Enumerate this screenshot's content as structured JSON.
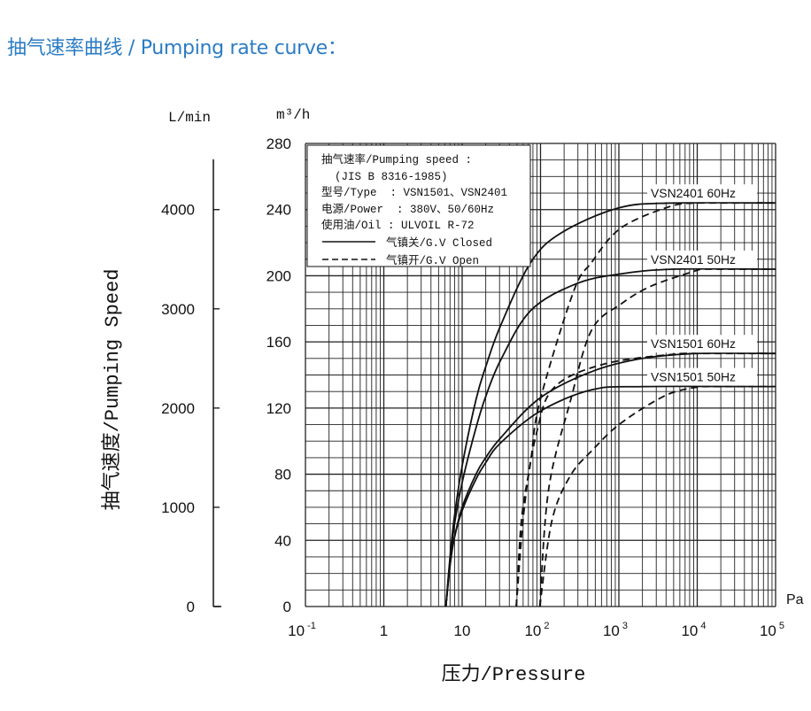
{
  "page": {
    "title": "抽气速率曲线 / Pumping rate curve："
  },
  "chart_data": {
    "type": "line",
    "title": "",
    "xlabel": "压力/Pressure",
    "xunit": "Pa",
    "xscale": "log",
    "xlim": [
      0.1,
      100000
    ],
    "x_ticks": [
      {
        "base": "10",
        "exp": "-1"
      },
      {
        "base": "1",
        "exp": ""
      },
      {
        "base": "10",
        "exp": ""
      },
      {
        "base": "10",
        "exp": "2"
      },
      {
        "base": "10",
        "exp": "3"
      },
      {
        "base": "10",
        "exp": "4"
      },
      {
        "base": "10",
        "exp": "5"
      }
    ],
    "ylabel": "抽气速度/Pumping Speed",
    "yunit": "m³/h",
    "ylim": [
      0,
      280
    ],
    "y_ticks": [
      "0",
      "40",
      "80",
      "120",
      "160",
      "200",
      "240",
      "280"
    ],
    "y2unit": "L/min",
    "y2_ticks": [
      "0",
      "1000",
      "2000",
      "3000",
      "4000"
    ],
    "y2_values": [
      0,
      1000,
      2000,
      3000,
      4000
    ],
    "grid": true,
    "legend": {
      "placement": "top-left",
      "lines": [
        "抽气速率/Pumping speed :",
        "  (JIS B 8316-1985)",
        "型号/Type  : VSN1501、VSN2401",
        "电源/Power  : 380V、50/60Hz",
        "使用油/Oil : ULVOIL R-72"
      ],
      "entries": [
        {
          "label": "气镇关/G.V Closed",
          "style": "solid"
        },
        {
          "label": "气镇开/G.V Open",
          "style": "dashed"
        }
      ]
    },
    "annotations": [
      {
        "text": "VSN2401 60Hz",
        "level": 244
      },
      {
        "text": "VSN2401 50Hz",
        "level": 204
      },
      {
        "text": "VSN1501 60Hz",
        "level": 153
      },
      {
        "text": "VSN1501 50Hz",
        "level": 133
      }
    ],
    "series": [
      {
        "name": "VSN2401 60Hz G.V Closed",
        "style": "solid",
        "x": [
          6.2,
          7,
          8,
          10,
          15,
          20,
          31,
          75,
          185,
          1000,
          5000,
          100000
        ],
        "y": [
          0,
          30,
          55,
          85,
          125,
          145,
          170,
          208,
          226,
          241,
          244,
          244
        ]
      },
      {
        "name": "VSN2401 50Hz G.V Closed",
        "style": "solid",
        "x": [
          6.2,
          7,
          8,
          10,
          15,
          20,
          31,
          75,
          280,
          1000,
          5000,
          100000
        ],
        "y": [
          0,
          28,
          50,
          75,
          108,
          127,
          149,
          179,
          195,
          201,
          204,
          204
        ]
      },
      {
        "name": "VSN1501 60Hz G.V Closed",
        "style": "solid",
        "x": [
          6.2,
          7,
          8,
          10,
          15,
          20,
          31,
          98,
          447,
          2000,
          10000,
          100000
        ],
        "y": [
          0,
          25,
          42,
          60,
          80,
          90,
          102,
          126,
          142,
          150,
          153,
          153
        ]
      },
      {
        "name": "VSN1501 50Hz G.V Closed",
        "style": "solid",
        "x": [
          6.2,
          7,
          8,
          10,
          15,
          20,
          31,
          98,
          447,
          2000,
          100000
        ],
        "y": [
          0,
          25,
          42,
          58,
          77,
          87,
          99,
          118,
          131,
          133,
          133
        ]
      },
      {
        "name": "VSN2401 60Hz G.V Open",
        "style": "dashed",
        "x": [
          49,
          57,
          75,
          98,
          262,
          447,
          1070,
          4570,
          10000
        ],
        "y": [
          0,
          52,
          88,
          124,
          190,
          208,
          229,
          242,
          244
        ]
      },
      {
        "name": "VSN1501 60Hz G.V Open",
        "style": "dashed",
        "x": [
          49,
          63,
          90,
          153,
          700,
          6400,
          10000
        ],
        "y": [
          0,
          62,
          106,
          133,
          147,
          153,
          153
        ]
      },
      {
        "name": "VSN2401 50Hz G.V Open",
        "style": "dashed",
        "x": [
          98,
          127,
          240,
          447,
          1070,
          2670,
          11000
        ],
        "y": [
          0,
          71,
          124,
          167,
          183,
          194,
          204
        ]
      },
      {
        "name": "VSN1501 50Hz G.V Open",
        "style": "dashed",
        "x": [
          98,
          140,
          240,
          447,
          1070,
          4100,
          11000
        ],
        "y": [
          0,
          52,
          79,
          94,
          111,
          128,
          133
        ]
      }
    ]
  },
  "colors": {
    "title": "#2b7cc4",
    "ink": "#111111",
    "grid": "#333333"
  }
}
